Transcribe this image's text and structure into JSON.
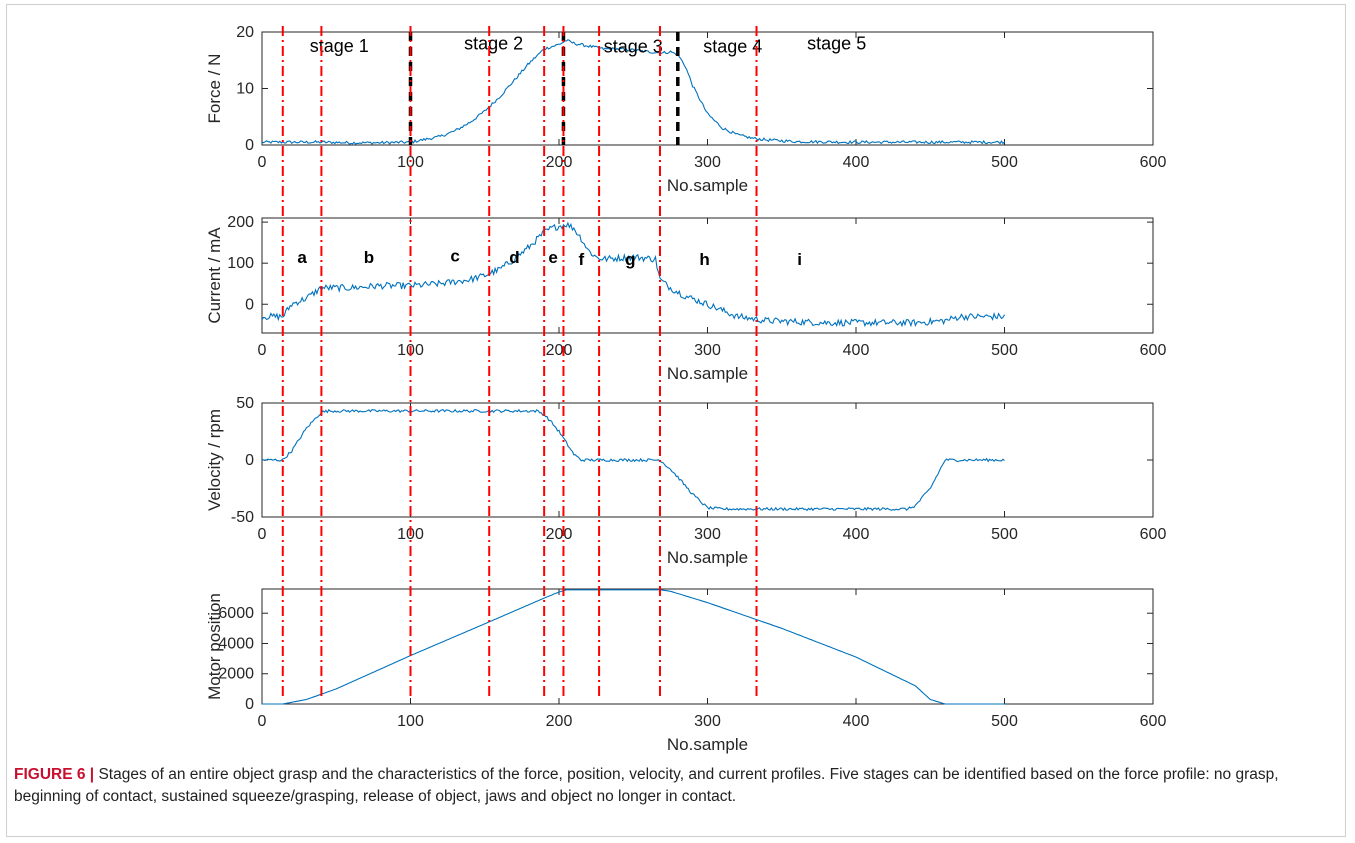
{
  "caption": {
    "label": "FIGURE 6 |",
    "text": "Stages of an entire object grasp and the characteristics of the force, position, velocity, and current profiles. Five stages can be identified based on the force profile: no grasp, beginning of contact, sustained squeeze/grasping, release of object, jaws and object no longer in contact."
  },
  "colors": {
    "series": "#0072bd",
    "stage_boundary": "#ff0000",
    "stage_marker": "#000000",
    "axes": "#262626"
  },
  "chart_data": [
    {
      "type": "line",
      "ylabel": "Force / N",
      "xlabel": "No.sample",
      "xlim": [
        0,
        600
      ],
      "ylim": [
        0,
        20
      ],
      "xticks": [
        0,
        100,
        200,
        300,
        400,
        500,
        600
      ],
      "yticks": [
        0,
        10,
        20
      ],
      "series": [
        {
          "x": [
            0,
            20,
            40,
            60,
            80,
            100,
            120,
            130,
            140,
            150,
            160,
            170,
            180,
            190,
            200,
            205,
            210,
            220,
            230,
            240,
            250,
            260,
            270,
            275,
            280,
            285,
            290,
            300,
            310,
            320,
            330,
            340,
            360,
            400,
            450,
            500
          ],
          "y": [
            0.5,
            0.5,
            0.5,
            0.4,
            0.4,
            0.5,
            1.5,
            2.5,
            4.0,
            6.0,
            8.5,
            11.5,
            14.5,
            17.0,
            17.8,
            18.5,
            18.0,
            17.5,
            17.0,
            17.0,
            16.8,
            16.5,
            16.3,
            16.5,
            16.0,
            14.0,
            10.5,
            5.5,
            3.0,
            1.8,
            1.2,
            0.9,
            0.6,
            0.5,
            0.5,
            0.5
          ],
          "noise": 0.25
        }
      ],
      "annotations": [
        {
          "text": "stage 1",
          "x": 52,
          "y": 16.5
        },
        {
          "text": "stage 2",
          "x": 156,
          "y": 16.9
        },
        {
          "text": "stage 3",
          "x": 250,
          "y": 16.4
        },
        {
          "text": "stage 4",
          "x": 317,
          "y": 16.4
        },
        {
          "text": "stage 5",
          "x": 387,
          "y": 16.9
        }
      ],
      "black_markers": [
        100,
        203,
        280
      ]
    },
    {
      "type": "line",
      "ylabel": "Current / mA",
      "xlabel": "No.sample",
      "xlim": [
        0,
        600
      ],
      "ylim": [
        -70,
        210
      ],
      "xticks": [
        0,
        100,
        200,
        300,
        400,
        500,
        600
      ],
      "yticks": [
        0,
        100,
        200
      ],
      "series": [
        {
          "x": [
            0,
            10,
            14,
            20,
            30,
            40,
            60,
            80,
            100,
            120,
            140,
            150,
            160,
            170,
            180,
            190,
            195,
            200,
            205,
            210,
            215,
            220,
            225,
            230,
            250,
            265,
            268,
            275,
            285,
            300,
            320,
            340,
            380,
            420,
            440,
            460,
            470,
            500
          ],
          "y": [
            -30,
            -30,
            -30,
            0,
            15,
            40,
            40,
            45,
            45,
            50,
            60,
            70,
            85,
            110,
            140,
            175,
            185,
            190,
            195,
            185,
            160,
            130,
            115,
            110,
            115,
            110,
            60,
            40,
            20,
            0,
            -30,
            -40,
            -45,
            -45,
            -45,
            -40,
            -30,
            -30
          ],
          "noise": 8
        }
      ],
      "annotations": [
        {
          "text": "a",
          "x": 27,
          "y": 100
        },
        {
          "text": "b",
          "x": 72,
          "y": 100
        },
        {
          "text": "c",
          "x": 130,
          "y": 104
        },
        {
          "text": "d",
          "x": 170,
          "y": 100
        },
        {
          "text": "e",
          "x": 196,
          "y": 100
        },
        {
          "text": "f",
          "x": 215,
          "y": 96
        },
        {
          "text": "g",
          "x": 248,
          "y": 96
        },
        {
          "text": "h",
          "x": 298,
          "y": 96
        },
        {
          "text": "i",
          "x": 362,
          "y": 96
        }
      ]
    },
    {
      "type": "line",
      "ylabel": "Velocity / rpm",
      "xlabel": "No.sample",
      "xlim": [
        0,
        600
      ],
      "ylim": [
        -50,
        50
      ],
      "xticks": [
        0,
        100,
        200,
        300,
        400,
        500,
        600
      ],
      "yticks": [
        -50,
        0,
        50
      ],
      "series": [
        {
          "x": [
            0,
            14,
            20,
            30,
            40,
            45,
            100,
            150,
            185,
            190,
            195,
            200,
            205,
            210,
            215,
            268,
            275,
            280,
            290,
            300,
            310,
            350,
            400,
            435,
            440,
            450,
            460,
            500
          ],
          "y": [
            0,
            0,
            8,
            28,
            42,
            43,
            43,
            43,
            43,
            40,
            33,
            25,
            15,
            5,
            0,
            0,
            -8,
            -15,
            -30,
            -42,
            -43,
            -43,
            -43,
            -43,
            -40,
            -25,
            0,
            0
          ],
          "noise": 1.2
        }
      ]
    },
    {
      "type": "line",
      "ylabel": "Motor position",
      "xlabel": "No.sample",
      "xlim": [
        0,
        600
      ],
      "ylim": [
        0,
        7600
      ],
      "xticks": [
        0,
        100,
        200,
        300,
        400,
        500,
        600
      ],
      "yticks": [
        0,
        2000,
        4000,
        6000
      ],
      "series": [
        {
          "x": [
            0,
            14,
            30,
            40,
            50,
            100,
            150,
            190,
            200,
            205,
            210,
            268,
            275,
            300,
            350,
            400,
            440,
            450,
            460,
            500
          ],
          "y": [
            0,
            0,
            300,
            650,
            1000,
            3200,
            5300,
            7000,
            7400,
            7550,
            7550,
            7550,
            7450,
            6700,
            5000,
            3100,
            1200,
            300,
            0,
            0
          ],
          "noise": 0
        }
      ]
    }
  ],
  "stage_boundaries": [
    14,
    40,
    100,
    153,
    190,
    203,
    227,
    268,
    333
  ]
}
